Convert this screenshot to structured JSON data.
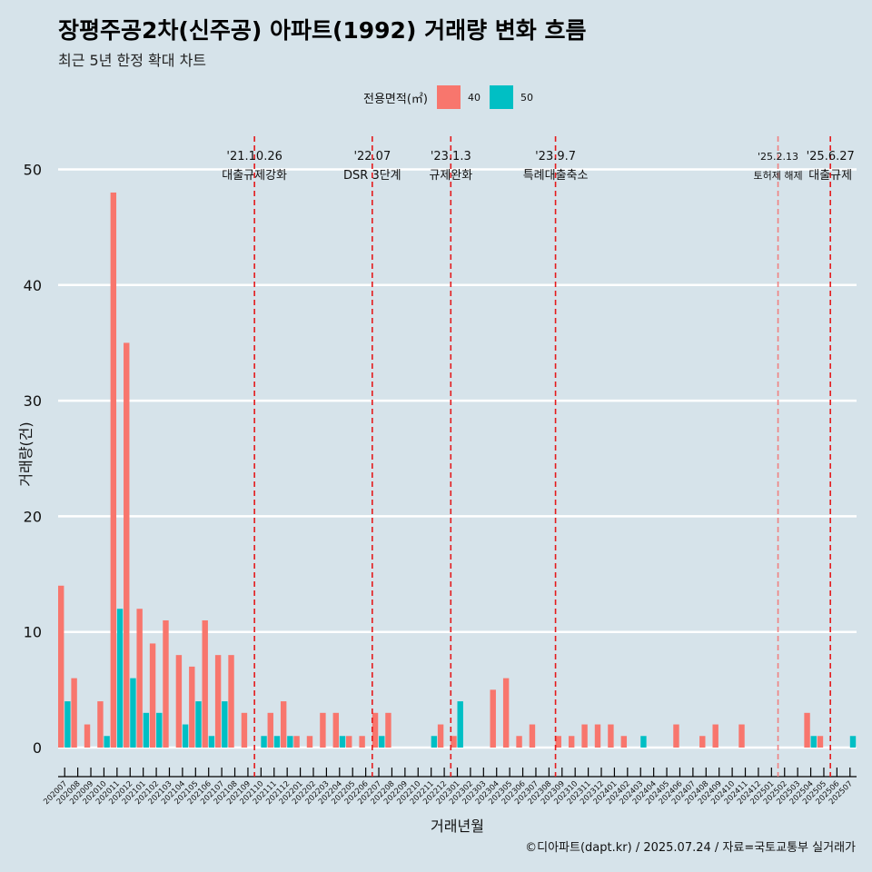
{
  "title": "장평주공2차(신주공) 아파트(1992) 거래량 변화 흐름",
  "subtitle": "최근 5년 한정 확대 차트",
  "caption": "©디아파트(dapt.kr) / 2025.07.24 / 자료=국토교통부 실거래가",
  "legend": {
    "title": "전용면적(㎡)",
    "items": [
      {
        "label": "40",
        "color": "#f8766d"
      },
      {
        "label": "50",
        "color": "#00bfc4"
      }
    ]
  },
  "chart_data": {
    "type": "bar",
    "xlabel": "거래년월",
    "ylabel": "거래량(건)",
    "ylim": [
      0,
      52
    ],
    "yticks": [
      0,
      10,
      20,
      30,
      40,
      50
    ],
    "grid": true,
    "legend_position": "top",
    "categories": [
      "202007",
      "202008",
      "202009",
      "202010",
      "202011",
      "202012",
      "202101",
      "202102",
      "202103",
      "202104",
      "202105",
      "202106",
      "202107",
      "202108",
      "202109",
      "202110",
      "202111",
      "202112",
      "202201",
      "202202",
      "202203",
      "202204",
      "202205",
      "202206",
      "202207",
      "202208",
      "202209",
      "202210",
      "202211",
      "202212",
      "202301",
      "202302",
      "202303",
      "202304",
      "202305",
      "202306",
      "202307",
      "202308",
      "202309",
      "202310",
      "202311",
      "202312",
      "202401",
      "202402",
      "202403",
      "202404",
      "202405",
      "202406",
      "202407",
      "202408",
      "202409",
      "202410",
      "202411",
      "202412",
      "202501",
      "202502",
      "202503",
      "202504",
      "202505",
      "202506",
      "202507"
    ],
    "series": [
      {
        "name": "40",
        "color": "#f8766d",
        "values": [
          14,
          6,
          2,
          4,
          48,
          35,
          12,
          9,
          11,
          8,
          7,
          11,
          8,
          8,
          3,
          0,
          3,
          4,
          1,
          1,
          3,
          3,
          1,
          1,
          3,
          3,
          0,
          0,
          0,
          2,
          1,
          0,
          0,
          5,
          6,
          1,
          2,
          0,
          1,
          1,
          2,
          2,
          2,
          1,
          0,
          0,
          0,
          2,
          0,
          1,
          2,
          0,
          2,
          0,
          0,
          0,
          0,
          3,
          1,
          0,
          0
        ]
      },
      {
        "name": "50",
        "color": "#00bfc4",
        "values": [
          4,
          0,
          0,
          1,
          12,
          6,
          3,
          3,
          0,
          2,
          4,
          1,
          4,
          0,
          0,
          1,
          1,
          1,
          0,
          0,
          0,
          1,
          0,
          0,
          1,
          0,
          0,
          0,
          1,
          0,
          4,
          0,
          0,
          0,
          0,
          0,
          0,
          0,
          0,
          0,
          0,
          0,
          0,
          0,
          1,
          0,
          0,
          0,
          0,
          0,
          0,
          0,
          0,
          0,
          0,
          0,
          0,
          1,
          0,
          0,
          1
        ]
      }
    ],
    "annotations": [
      {
        "category": "202110",
        "date": "'21.10.26",
        "label": "대출규제강화",
        "line_color": "#e41a1c"
      },
      {
        "category": "202207",
        "date": "'22.07",
        "label": "DSR 3단계",
        "line_color": "#e41a1c"
      },
      {
        "category": "202301",
        "date": "'23.1.3",
        "label": "규제완화",
        "line_color": "#e41a1c"
      },
      {
        "category": "202309",
        "date": "'23.9.7",
        "label": "특례대출축소",
        "line_color": "#e41a1c"
      },
      {
        "category": "202502",
        "date": "'25.2.13",
        "label": "토허제 해제",
        "line_color": "#f08080",
        "small": true
      },
      {
        "category": "202506",
        "date": "'25.6.27",
        "label": "대출규제",
        "line_color": "#e41a1c"
      }
    ]
  }
}
